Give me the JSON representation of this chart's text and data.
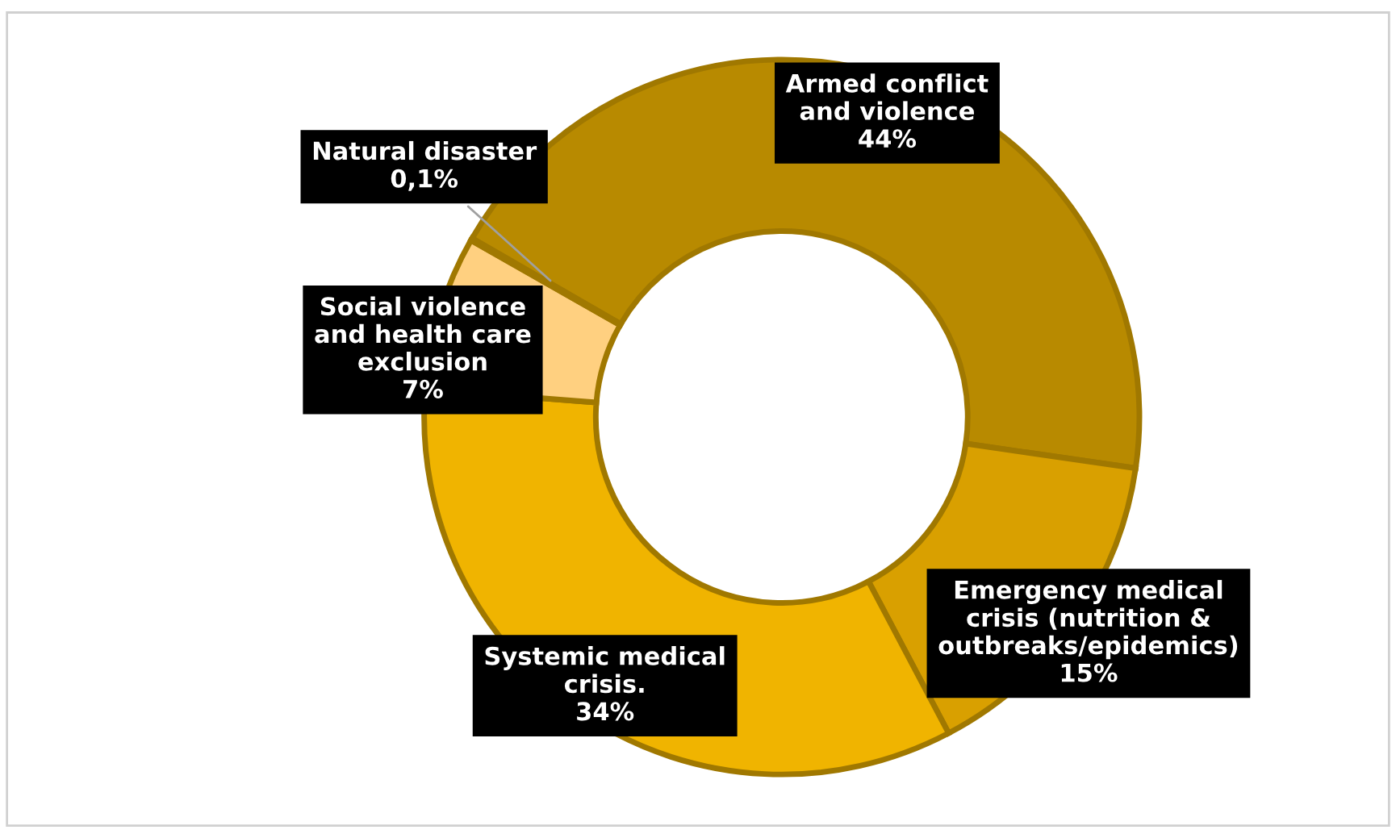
{
  "chart_data": {
    "type": "donut",
    "categories": [
      "Armed conflict\nand violence",
      "Emergency medical\ncrisis (nutrition &\noutbreaks/epidemics)",
      "Systemic medical\ncrisis.",
      "Social violence\nand health care\nexclusion",
      "Natural disaster"
    ],
    "values": [
      44,
      15,
      34,
      7,
      0.1
    ],
    "value_labels": [
      "44%",
      "15%",
      "34%",
      "7%",
      "0,1%"
    ],
    "colors": [
      "#b88a00",
      "#d9a000",
      "#f0b400",
      "#ffd080",
      "#f8e0b0"
    ]
  }
}
